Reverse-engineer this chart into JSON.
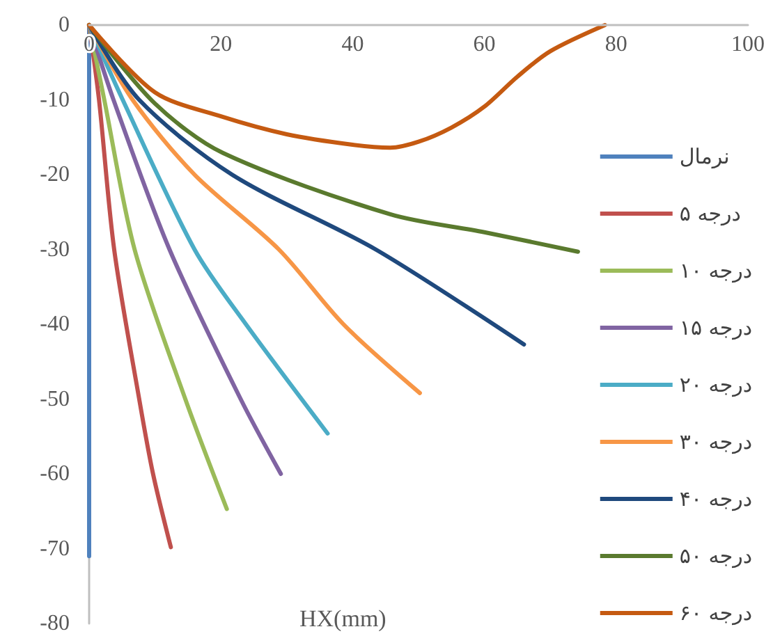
{
  "chart_data": {
    "type": "line",
    "xlabel": "HX(mm)",
    "xlim": [
      0,
      100
    ],
    "xticks": [
      0,
      20,
      40,
      60,
      80,
      100
    ],
    "ylim": [
      -80,
      0
    ],
    "yticks": [
      0,
      -10,
      -20,
      -30,
      -40,
      -50,
      -60,
      -70,
      -80
    ],
    "grid": false,
    "legend": "right",
    "marker": "none",
    "line_style": "solid",
    "series": [
      {
        "name": "نرمال",
        "color": "#4f81bd",
        "x": [
          0,
          0
        ],
        "values": [
          0,
          -71
        ]
      },
      {
        "name": "۵ درجه",
        "color": "#c0504d",
        "x": [
          0,
          1.5,
          3.8,
          7.6,
          9.7,
          12.4
        ],
        "values": [
          0,
          -10,
          -30,
          -50,
          -60,
          -69.8
        ]
      },
      {
        "name": "۱۰ درجه",
        "color": "#9bbb59",
        "x": [
          0,
          2.3,
          6.9,
          14.6,
          20.9
        ],
        "values": [
          0,
          -10,
          -30,
          -50,
          -64.7
        ]
      },
      {
        "name": "۱۵ درجه",
        "color": "#8064a2",
        "x": [
          0,
          3.7,
          12.2,
          23,
          29.1
        ],
        "values": [
          0,
          -10,
          -30,
          -50,
          -60
        ]
      },
      {
        "name": "۲۰ درجه",
        "color": "#4bacc6",
        "x": [
          0,
          5.1,
          16,
          23.8,
          36.2
        ],
        "values": [
          0,
          -10,
          -30,
          -40,
          -54.6
        ]
      },
      {
        "name": "۳۰ درجه",
        "color": "#f79646",
        "x": [
          0,
          6.6,
          16,
          28.8,
          38.6,
          50.2
        ],
        "values": [
          0,
          -10,
          -20,
          -30,
          -40,
          -49.2
        ]
      },
      {
        "name": "۴۰ درجه",
        "color": "#1f497d",
        "x": [
          0,
          7.6,
          21.7,
          43.5,
          66
        ],
        "values": [
          0,
          -10,
          -20,
          -30,
          -42.7
        ]
      },
      {
        "name": "۵۰ درجه",
        "color": "#5a7a2e",
        "x": [
          0,
          10,
          20.3,
          45.7,
          60,
          74.2
        ],
        "values": [
          0,
          -10.5,
          -17.1,
          -25.3,
          -27.7,
          -30.3
        ]
      },
      {
        "name": "۶۰ درجه",
        "color": "#c55a11",
        "x": [
          0,
          10,
          20,
          30,
          40,
          45.7,
          50,
          55,
          60,
          65,
          70,
          78.3
        ],
        "values": [
          0,
          -9,
          -12.2,
          -14.6,
          -16,
          -16.4,
          -15.6,
          -13.7,
          -10.9,
          -6.9,
          -3.5,
          0
        ]
      }
    ]
  }
}
